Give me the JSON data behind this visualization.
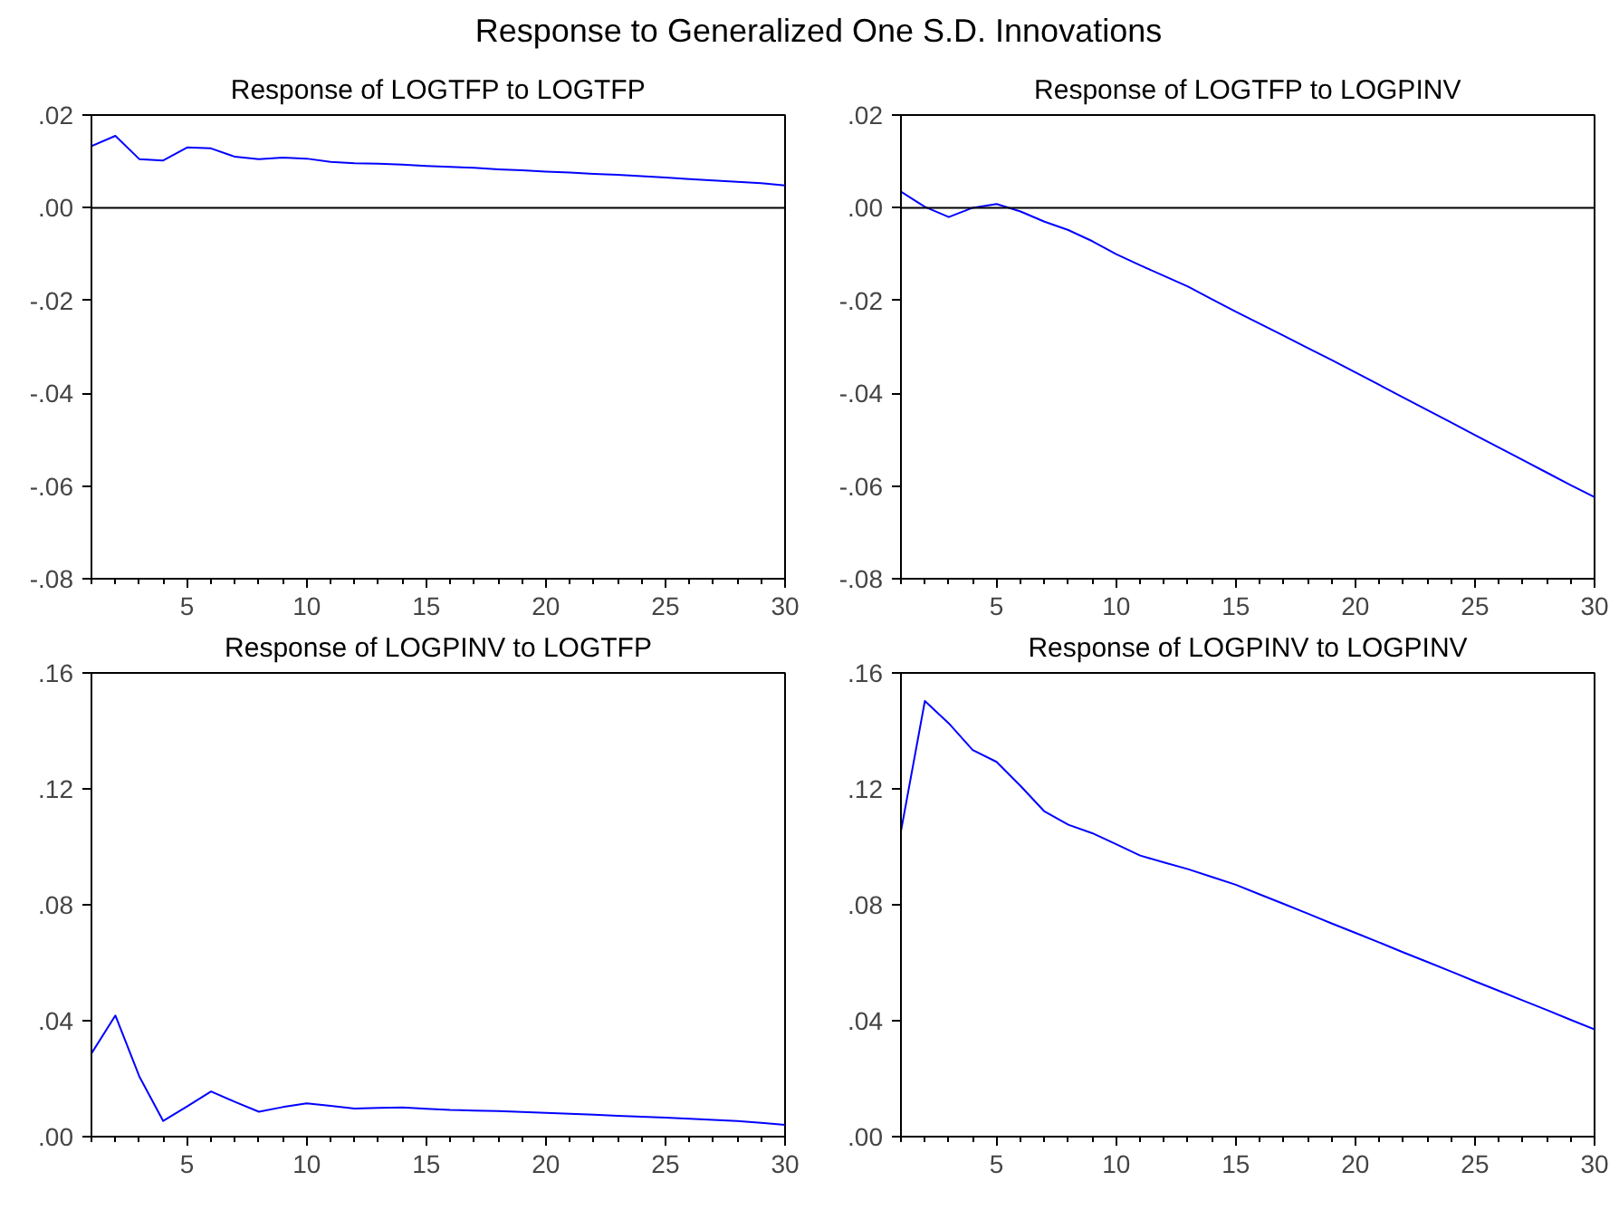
{
  "chart_data": [
    {
      "type": "line",
      "title": "Response of LOGTFP to LOGTFP",
      "annotations": [
        "Response to Generalized One S.D. Innovations"
      ],
      "color": "#0000ff",
      "grid": false,
      "x": [
        1,
        2,
        3,
        4,
        5,
        6,
        7,
        8,
        9,
        10,
        11,
        12,
        13,
        14,
        15,
        16,
        17,
        18,
        19,
        20,
        21,
        22,
        23,
        24,
        25,
        26,
        27,
        28,
        29,
        30
      ],
      "values": [
        0.0133,
        0.0155,
        0.0105,
        0.0102,
        0.013,
        0.0128,
        0.011,
        0.0105,
        0.0108,
        0.0106,
        0.0099,
        0.0096,
        0.0095,
        0.0093,
        0.009,
        0.0088,
        0.0086,
        0.0083,
        0.0081,
        0.0078,
        0.0076,
        0.0073,
        0.0071,
        0.0068,
        0.0065,
        0.0062,
        0.0059,
        0.0056,
        0.0053,
        0.0048
      ],
      "xlim": [
        1,
        30
      ],
      "xticks": [
        5,
        10,
        15,
        20,
        25,
        30
      ],
      "ylim": [
        -0.08,
        0.02
      ],
      "yticks": [
        {
          "value": -0.08,
          "label": "-.08"
        },
        {
          "value": -0.06,
          "label": "-.06"
        },
        {
          "value": -0.04,
          "label": "-.04"
        },
        {
          "value": -0.02,
          "label": "-.02"
        },
        {
          "value": 0,
          "label": ".00"
        },
        {
          "value": 0.02,
          "label": ".02"
        }
      ],
      "ref_lines": [
        {
          "axis": "y",
          "value": 0,
          "color": "#000000"
        }
      ]
    },
    {
      "type": "line",
      "title": "Response of LOGTFP to LOGPINV",
      "color": "#0000ff",
      "grid": false,
      "x": [
        1,
        2,
        3,
        4,
        5,
        6,
        7,
        8,
        9,
        10,
        11,
        12,
        13,
        14,
        15,
        16,
        17,
        18,
        19,
        20,
        21,
        22,
        23,
        24,
        25,
        26,
        27,
        28,
        29,
        30
      ],
      "values": [
        0.0035,
        0.0002,
        -0.002,
        0.0,
        0.0008,
        -0.0008,
        -0.003,
        -0.0048,
        -0.0072,
        -0.01,
        -0.0124,
        -0.0147,
        -0.017,
        -0.0197,
        -0.0224,
        -0.025,
        -0.0276,
        -0.0302,
        -0.0328,
        -0.0355,
        -0.0382,
        -0.0409,
        -0.0436,
        -0.0463,
        -0.049,
        -0.0517,
        -0.0544,
        -0.0571,
        -0.0598,
        -0.0624
      ],
      "xlim": [
        1,
        30
      ],
      "xticks": [
        5,
        10,
        15,
        20,
        25,
        30
      ],
      "ylim": [
        -0.08,
        0.02
      ],
      "yticks": [
        {
          "value": -0.08,
          "label": "-.08"
        },
        {
          "value": -0.06,
          "label": "-.06"
        },
        {
          "value": -0.04,
          "label": "-.04"
        },
        {
          "value": -0.02,
          "label": "-.02"
        },
        {
          "value": 0,
          "label": ".00"
        },
        {
          "value": 0.02,
          "label": ".02"
        }
      ],
      "ref_lines": [
        {
          "axis": "y",
          "value": 0,
          "color": "#000000"
        }
      ]
    },
    {
      "type": "line",
      "title": "Response of LOGPINV to LOGTFP",
      "color": "#0000ff",
      "grid": false,
      "x": [
        1,
        2,
        3,
        4,
        5,
        6,
        7,
        8,
        9,
        10,
        11,
        12,
        13,
        14,
        15,
        16,
        17,
        18,
        19,
        20,
        21,
        22,
        23,
        24,
        25,
        26,
        27,
        28,
        29,
        30
      ],
      "values": [
        0.0287,
        0.0418,
        0.0208,
        0.0054,
        0.0104,
        0.0156,
        0.012,
        0.0086,
        0.0102,
        0.0115,
        0.0106,
        0.0097,
        0.0099,
        0.0101,
        0.0096,
        0.0092,
        0.009,
        0.0088,
        0.0085,
        0.0082,
        0.0079,
        0.0076,
        0.0072,
        0.0069,
        0.0066,
        0.0062,
        0.0058,
        0.0054,
        0.0048,
        0.0041
      ],
      "xlim": [
        1,
        30
      ],
      "xticks": [
        5,
        10,
        15,
        20,
        25,
        30
      ],
      "ylim": [
        0,
        0.16
      ],
      "yticks": [
        {
          "value": 0,
          "label": ".00"
        },
        {
          "value": 0.04,
          "label": ".04"
        },
        {
          "value": 0.08,
          "label": ".08"
        },
        {
          "value": 0.12,
          "label": ".12"
        },
        {
          "value": 0.16,
          "label": ".16"
        }
      ]
    },
    {
      "type": "line",
      "title": "Response of LOGPINV to LOGPINV",
      "color": "#0000ff",
      "grid": false,
      "x": [
        1,
        2,
        3,
        4,
        5,
        6,
        7,
        8,
        9,
        10,
        11,
        12,
        13,
        14,
        15,
        16,
        17,
        18,
        19,
        20,
        21,
        22,
        23,
        24,
        25,
        26,
        27,
        28,
        29,
        30
      ],
      "values": [
        0.1054,
        0.1503,
        0.1426,
        0.1334,
        0.1293,
        0.121,
        0.1122,
        0.1076,
        0.1047,
        0.1009,
        0.097,
        0.0946,
        0.0923,
        0.0896,
        0.0869,
        0.0836,
        0.0803,
        0.077,
        0.0736,
        0.0703,
        0.067,
        0.0636,
        0.0603,
        0.057,
        0.0536,
        0.0503,
        0.047,
        0.0437,
        0.0403,
        0.037
      ],
      "xlim": [
        1,
        30
      ],
      "xticks": [
        5,
        10,
        15,
        20,
        25,
        30
      ],
      "ylim": [
        0,
        0.16
      ],
      "yticks": [
        {
          "value": 0,
          "label": ".00"
        },
        {
          "value": 0.04,
          "label": ".04"
        },
        {
          "value": 0.08,
          "label": ".08"
        },
        {
          "value": 0.12,
          "label": ".12"
        },
        {
          "value": 0.16,
          "label": ".16"
        }
      ]
    }
  ]
}
